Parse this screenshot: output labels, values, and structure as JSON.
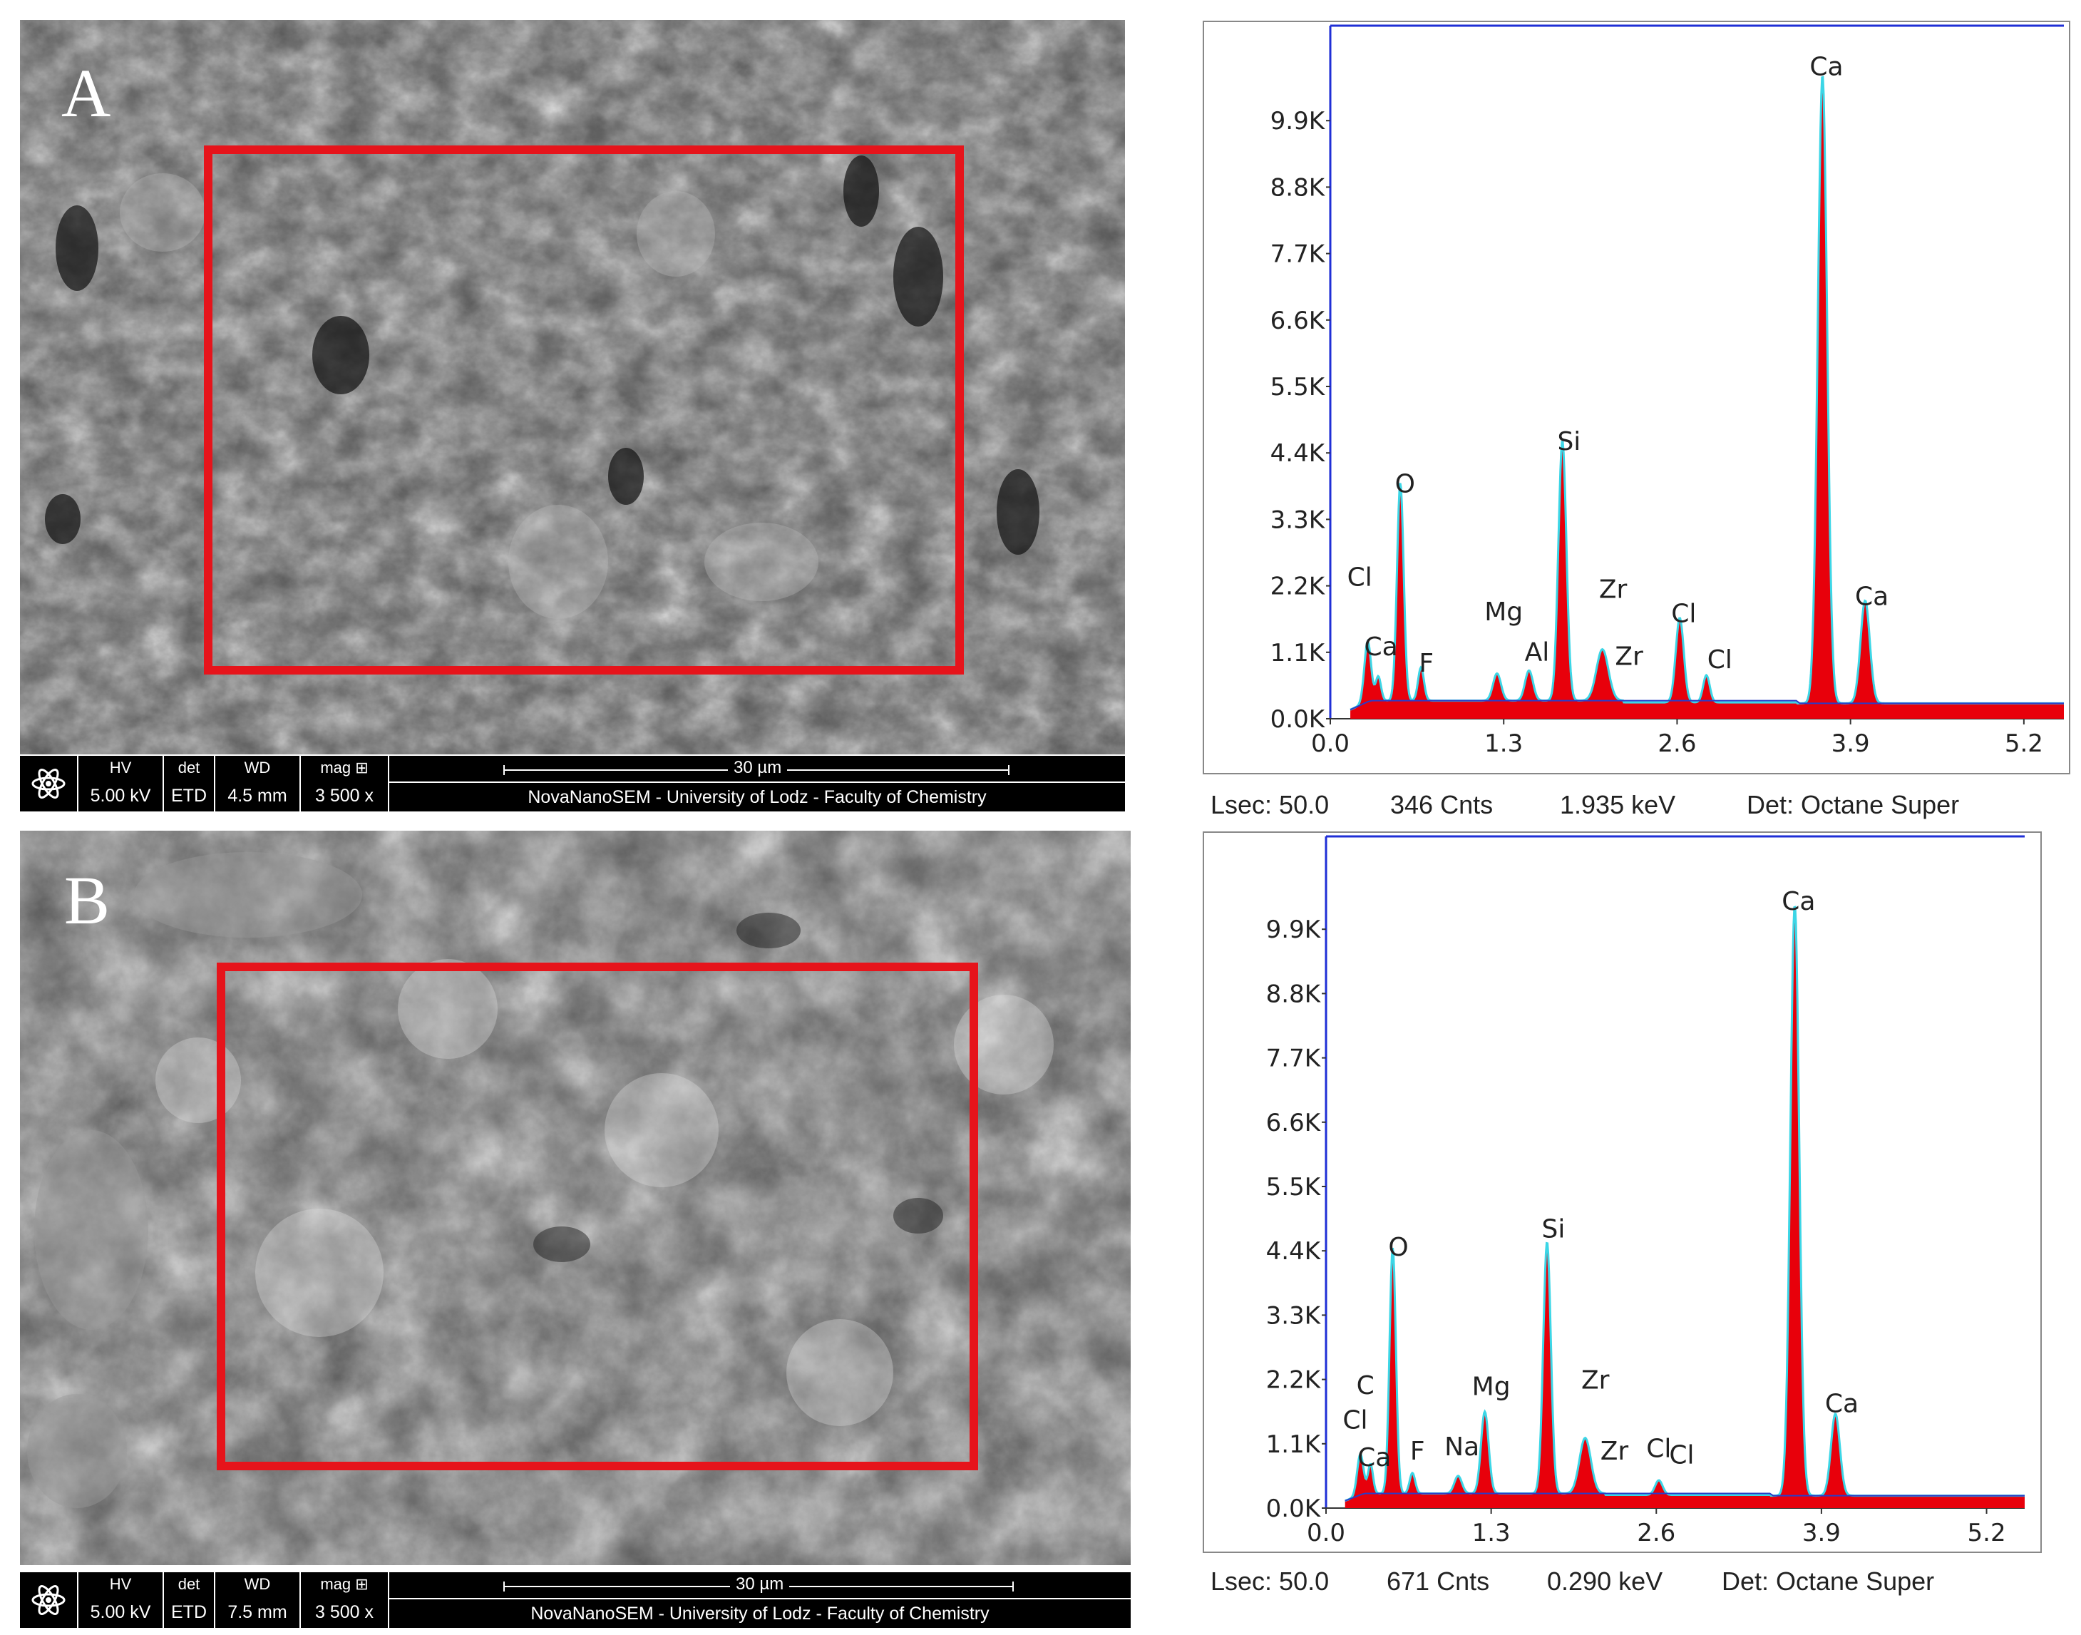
{
  "panels": [
    {
      "letter": "A",
      "sem": {
        "hv_label": "HV",
        "hv": "5.00 kV",
        "det_label": "det",
        "det": "ETD",
        "wd_label": "WD",
        "wd": "4.5 mm",
        "mag_label": "mag ⊞",
        "mag": "3 500 x",
        "scale": "30 µm",
        "footer": "NovaNanoSEM - University of Lodz - Faculty of Chemistry",
        "logo_icon": "atom-icon",
        "roi_color": "#e6141b"
      },
      "eds": {
        "status": {
          "lsec": "Lsec: 50.0",
          "cnts": "346 Cnts",
          "kev": "1.935 keV",
          "det": "Det: Octane Super"
        },
        "chart_data": {
          "type": "area",
          "y_ticks": [
            "0.0K",
            "1.1K",
            "2.2K",
            "3.3K",
            "4.4K",
            "5.5K",
            "6.6K",
            "7.7K",
            "8.8K",
            "9.9K"
          ],
          "x_ticks": [
            "0.0",
            "1.3",
            "2.6",
            "3.9",
            "5.2"
          ],
          "xlim": [
            0,
            5.5
          ],
          "ylim": [
            0,
            11000
          ],
          "fill_color": "#e8000b",
          "line_color": "#3cd6e6",
          "background_color": "#2a3cc8",
          "baseline": 300,
          "peaks": [
            {
              "x": 0.28,
              "y": 1000,
              "w": 0.025
            },
            {
              "x": 0.36,
              "y": 400,
              "w": 0.02
            },
            {
              "x": 0.525,
              "y": 3600,
              "w": 0.025
            },
            {
              "x": 0.68,
              "y": 550,
              "w": 0.022
            },
            {
              "x": 1.25,
              "y": 450,
              "w": 0.03
            },
            {
              "x": 1.49,
              "y": 500,
              "w": 0.03
            },
            {
              "x": 1.74,
              "y": 4300,
              "w": 0.03
            },
            {
              "x": 2.04,
              "y": 850,
              "w": 0.045
            },
            {
              "x": 2.62,
              "y": 1400,
              "w": 0.03
            },
            {
              "x": 2.82,
              "y": 450,
              "w": 0.025
            },
            {
              "x": 3.69,
              "y": 10400,
              "w": 0.035
            },
            {
              "x": 4.01,
              "y": 1700,
              "w": 0.035
            }
          ],
          "labels": [
            {
              "text": "Cl",
              "x": 0.22,
              "y": 2200
            },
            {
              "text": "Ca",
              "x": 0.38,
              "y": 1050
            },
            {
              "text": "O",
              "x": 0.56,
              "y": 3750
            },
            {
              "text": "F",
              "x": 0.72,
              "y": 780
            },
            {
              "text": "Mg",
              "x": 1.3,
              "y": 1630
            },
            {
              "text": "Al",
              "x": 1.55,
              "y": 960
            },
            {
              "text": "Si",
              "x": 1.79,
              "y": 4450
            },
            {
              "text": "Zr",
              "x": 2.12,
              "y": 2000
            },
            {
              "text": "Zr",
              "x": 2.24,
              "y": 890
            },
            {
              "text": "Cl",
              "x": 2.65,
              "y": 1600
            },
            {
              "text": "Cl",
              "x": 2.92,
              "y": 840
            },
            {
              "text": "Ca",
              "x": 3.72,
              "y": 10650
            },
            {
              "text": "Ca",
              "x": 4.06,
              "y": 1880
            }
          ]
        }
      }
    },
    {
      "letter": "B",
      "sem": {
        "hv_label": "HV",
        "hv": "5.00 kV",
        "det_label": "det",
        "det": "ETD",
        "wd_label": "WD",
        "wd": "7.5 mm",
        "mag_label": "mag ⊞",
        "mag": "3 500 x",
        "scale": "30 µm",
        "footer": "NovaNanoSEM - University of Lodz - Faculty of Chemistry",
        "logo_icon": "atom-icon",
        "roi_color": "#e6141b"
      },
      "eds": {
        "status": {
          "lsec": "Lsec: 50.0",
          "cnts": "671 Cnts",
          "kev": "0.290 keV",
          "det": "Det: Octane Super"
        },
        "chart_data": {
          "type": "area",
          "y_ticks": [
            "0.0K",
            "1.1K",
            "2.2K",
            "3.3K",
            "4.4K",
            "5.5K",
            "6.6K",
            "7.7K",
            "8.8K",
            "9.9K"
          ],
          "x_ticks": [
            "0.0",
            "1.3",
            "2.6",
            "3.9",
            "5.2"
          ],
          "xlim": [
            0,
            5.5
          ],
          "ylim": [
            0,
            11000
          ],
          "fill_color": "#e8000b",
          "line_color": "#3cd6e6",
          "background_color": "#2a3cc8",
          "baseline": 250,
          "peaks": [
            {
              "x": 0.27,
              "y": 700,
              "w": 0.025
            },
            {
              "x": 0.35,
              "y": 500,
              "w": 0.02
            },
            {
              "x": 0.525,
              "y": 4200,
              "w": 0.025
            },
            {
              "x": 0.68,
              "y": 350,
              "w": 0.022
            },
            {
              "x": 1.04,
              "y": 300,
              "w": 0.03
            },
            {
              "x": 1.25,
              "y": 1400,
              "w": 0.03
            },
            {
              "x": 1.74,
              "y": 4300,
              "w": 0.03
            },
            {
              "x": 2.04,
              "y": 950,
              "w": 0.045
            },
            {
              "x": 2.62,
              "y": 250,
              "w": 0.03
            },
            {
              "x": 3.69,
              "y": 10100,
              "w": 0.035
            },
            {
              "x": 4.01,
              "y": 1400,
              "w": 0.035
            }
          ],
          "labels": [
            {
              "text": "C",
              "x": 0.31,
              "y": 1950
            },
            {
              "text": "Cl",
              "x": 0.23,
              "y": 1360
            },
            {
              "text": "Ca",
              "x": 0.38,
              "y": 720
            },
            {
              "text": "O",
              "x": 0.57,
              "y": 4320
            },
            {
              "text": "F",
              "x": 0.72,
              "y": 830
            },
            {
              "text": "Na",
              "x": 1.07,
              "y": 900
            },
            {
              "text": "Mg",
              "x": 1.3,
              "y": 1930
            },
            {
              "text": "Si",
              "x": 1.79,
              "y": 4630
            },
            {
              "text": "Zr",
              "x": 2.12,
              "y": 2040
            },
            {
              "text": "Zr",
              "x": 2.27,
              "y": 830
            },
            {
              "text": "Cl",
              "x": 2.62,
              "y": 870
            },
            {
              "text": "Cl",
              "x": 2.8,
              "y": 760
            },
            {
              "text": "Ca",
              "x": 3.72,
              "y": 10230
            },
            {
              "text": "Ca",
              "x": 4.06,
              "y": 1640
            }
          ]
        }
      }
    }
  ]
}
